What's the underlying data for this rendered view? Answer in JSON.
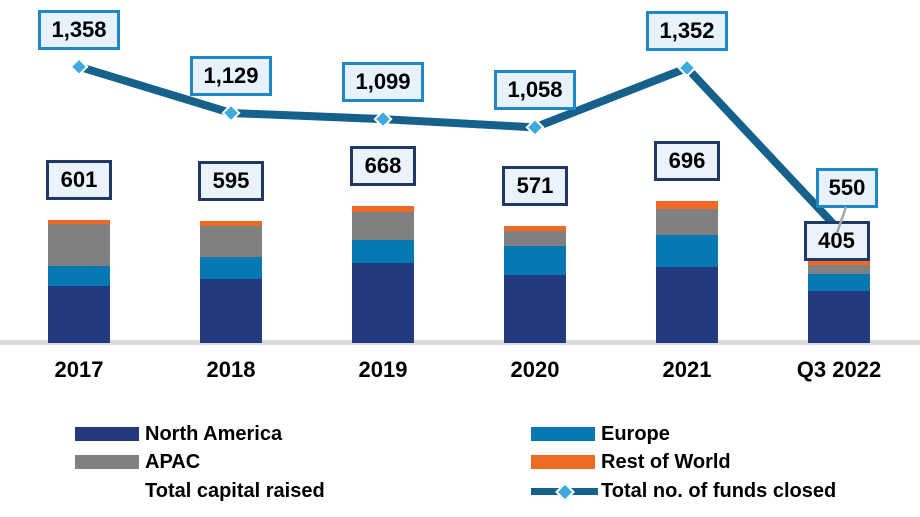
{
  "chart_data": {
    "type": "combo_stacked_bar_line",
    "categories": [
      "2017",
      "2018",
      "2019",
      "2020",
      "2021",
      "Q3 2022"
    ],
    "series": [
      {
        "name": "North America",
        "role": "bar-segment",
        "color": "#21397F",
        "values": [
          278,
          315,
          391,
          334,
          370,
          254
        ]
      },
      {
        "name": "Europe",
        "role": "bar-segment",
        "color": "#0679B2",
        "values": [
          98,
          103,
          114,
          139,
          158,
          84
        ]
      },
      {
        "name": "APAC",
        "role": "bar-segment",
        "color": "#808080",
        "values": [
          205,
          156,
          137,
          74,
          127,
          44
        ]
      },
      {
        "name": "Rest of World",
        "role": "bar-segment",
        "color": "#EE6A24",
        "values": [
          20,
          21,
          26,
          24,
          41,
          23
        ]
      },
      {
        "name": "Total capital raised",
        "role": "bar-total-label",
        "values": [
          601,
          595,
          668,
          571,
          696,
          405
        ],
        "labels": [
          "601",
          "595",
          "668",
          "571",
          "696",
          "405"
        ]
      },
      {
        "name": "Total no. of funds closed",
        "role": "line",
        "color": "#16618C",
        "marker_color": "#3DAAE0",
        "values": [
          1358,
          1129,
          1099,
          1058,
          1352,
          550
        ],
        "labels": [
          "1,358",
          "1,129",
          "1,099",
          "1,058",
          "1,352",
          "550"
        ]
      }
    ],
    "title": "",
    "xlabel": "",
    "ylabel": "",
    "grid": false,
    "legend_position": "bottom",
    "bar_total_range_estimate": [
      0,
      700
    ],
    "line_range_estimate": [
      0,
      1400
    ],
    "style": {
      "background": "#FFFFFF",
      "text_color": "#000000",
      "baseline_color": "#D9D9D9",
      "capital_box": {
        "fill": "#EAF2FB",
        "border": "#1F3864"
      },
      "funds_box": {
        "fill": "#E6F2FC",
        "border": "#1E88C7"
      },
      "leader_line_color": "#A6A6A6",
      "marker_outline": "#FFFFFF"
    }
  }
}
